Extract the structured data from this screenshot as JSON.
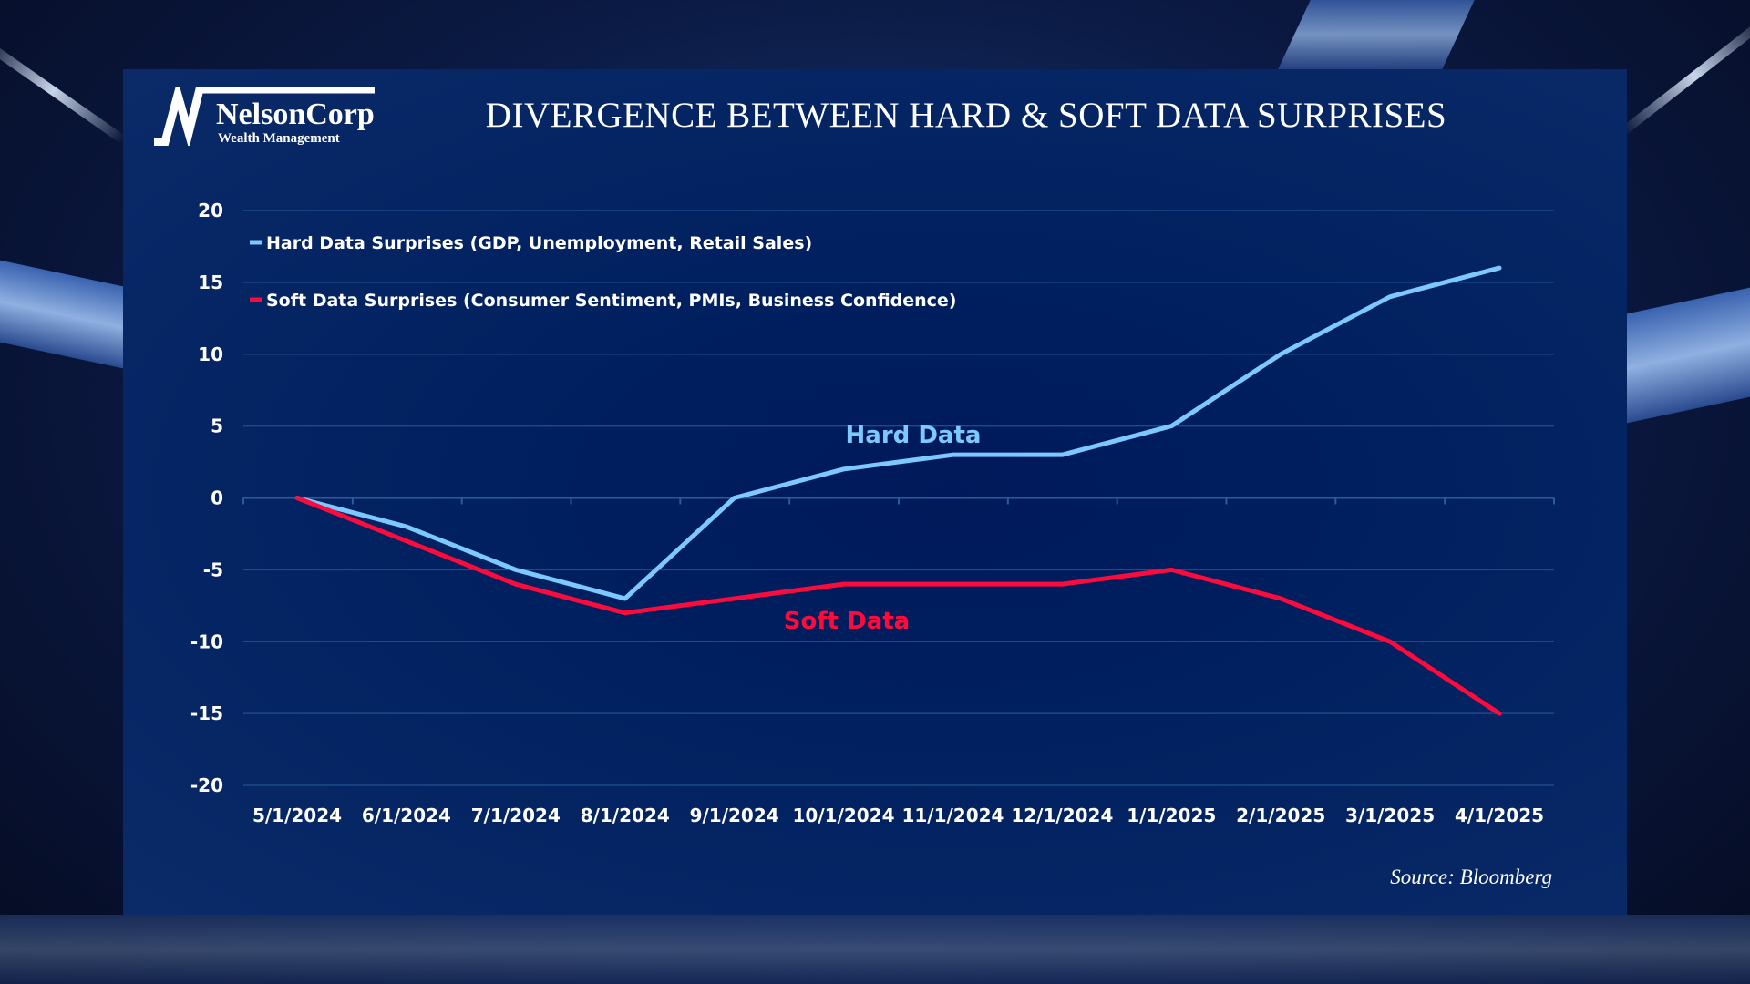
{
  "logo": {
    "name": "NelsonCorp",
    "subtitle": "Wealth Management"
  },
  "source": "Source: Bloomberg",
  "colors": {
    "hard": "#7cc8ff",
    "soft": "#ff0a3c",
    "grid": "#1e4a8a"
  },
  "chart_data": {
    "type": "line",
    "title": "DIVERGENCE BETWEEN HARD & SOFT DATA SURPRISES",
    "x": [
      "5/1/2024",
      "6/1/2024",
      "7/1/2024",
      "8/1/2024",
      "9/1/2024",
      "10/1/2024",
      "11/1/2024",
      "12/1/2024",
      "1/1/2025",
      "2/1/2025",
      "3/1/2025",
      "4/1/2025"
    ],
    "yticks": [
      "20",
      "15",
      "10",
      "5",
      "0",
      "-5",
      "-10",
      "-15",
      "-20"
    ],
    "ylim": [
      -20,
      20
    ],
    "grid": true,
    "legend_position": "top-left",
    "series": [
      {
        "name": "Hard Data Surprises (GDP, Unemployment, Retail Sales)",
        "label": "Hard Data",
        "color": "#7cc8ff",
        "values": [
          0,
          -2,
          -5,
          -7,
          0,
          2,
          3,
          3,
          5,
          10,
          14,
          16
        ]
      },
      {
        "name": "Soft Data Surprises (Consumer Sentiment, PMIs, Business Confidence)",
        "label": "Soft Data",
        "color": "#ff0a3c",
        "values": [
          0,
          -3,
          -6,
          -8,
          -7,
          -6,
          -6,
          -6,
          -5,
          -7,
          -10,
          -15
        ]
      }
    ]
  }
}
